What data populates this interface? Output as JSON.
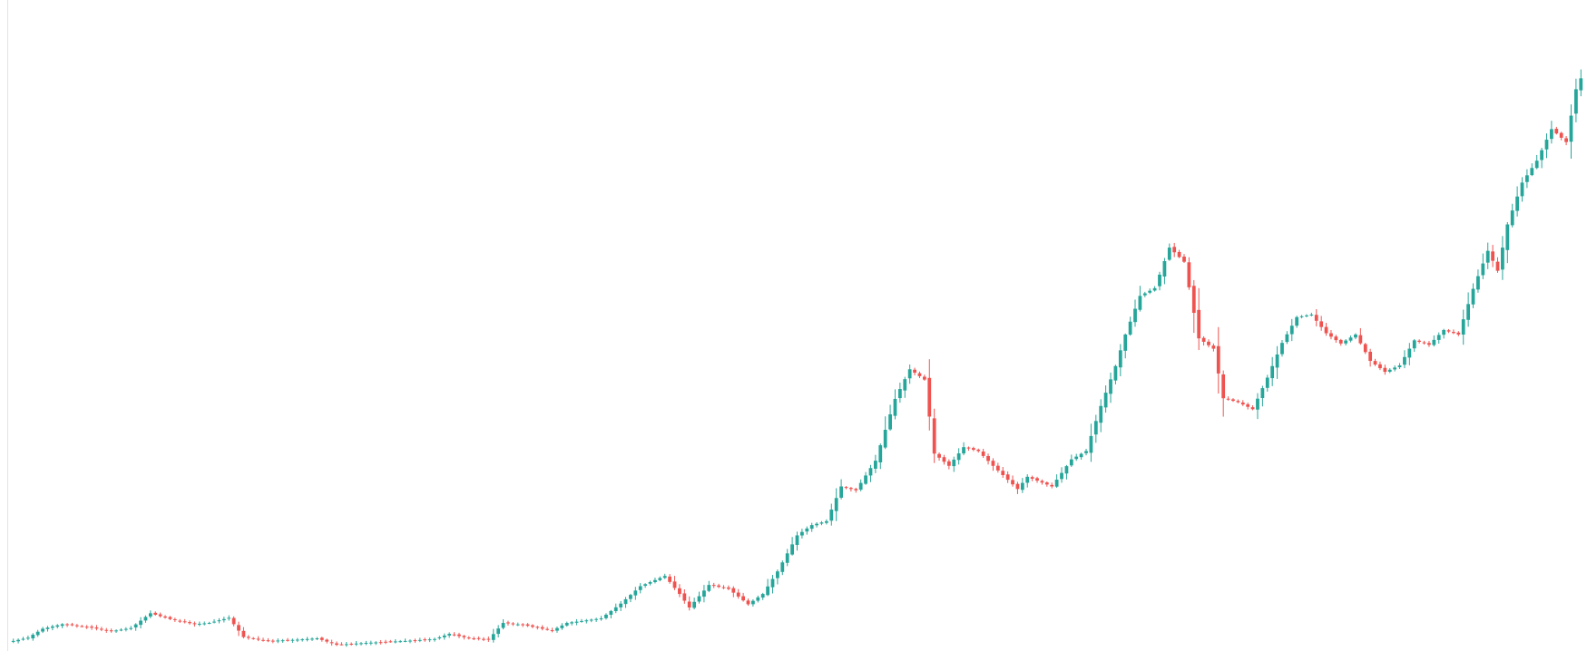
{
  "chart_data": {
    "type": "candlestick",
    "title": "",
    "xlabel": "",
    "ylabel": "",
    "grid": false,
    "legend": "none",
    "ylim": [
      0,
      100
    ],
    "colors": {
      "up": "#26a69a",
      "down": "#ef5350",
      "axis": "#e0e3eb",
      "background": "#ffffff"
    },
    "series": [
      {
        "name": "",
        "anchors": [
          [
            0,
            1.0
          ],
          [
            3,
            1.5
          ],
          [
            6,
            2.9
          ],
          [
            10,
            3.6
          ],
          [
            15,
            3.2
          ],
          [
            20,
            2.5
          ],
          [
            24,
            3.0
          ],
          [
            28,
            5.3
          ],
          [
            32,
            4.4
          ],
          [
            37,
            3.6
          ],
          [
            40,
            3.8
          ],
          [
            44,
            4.6
          ],
          [
            47,
            1.6
          ],
          [
            52,
            1.0
          ],
          [
            58,
            1.2
          ],
          [
            62,
            1.4
          ],
          [
            66,
            0.4
          ],
          [
            72,
            0.7
          ],
          [
            80,
            1.0
          ],
          [
            86,
            1.3
          ],
          [
            89,
            2.1
          ],
          [
            93,
            1.4
          ],
          [
            97,
            1.2
          ],
          [
            100,
            3.8
          ],
          [
            104,
            3.5
          ],
          [
            110,
            2.6
          ],
          [
            113,
            3.8
          ],
          [
            120,
            4.5
          ],
          [
            124,
            6.8
          ],
          [
            128,
            9.5
          ],
          [
            133,
            11.1
          ],
          [
            136,
            8.3
          ],
          [
            138,
            6.2
          ],
          [
            142,
            9.7
          ],
          [
            146,
            9.1
          ],
          [
            150,
            6.7
          ],
          [
            153,
            8.3
          ],
          [
            156,
            11.8
          ],
          [
            160,
            17.4
          ],
          [
            163,
            19.0
          ],
          [
            166,
            19.6
          ],
          [
            169,
            25.0
          ],
          [
            172,
            24.4
          ],
          [
            176,
            29.0
          ],
          [
            180,
            38.6
          ],
          [
            183,
            43.2
          ],
          [
            186,
            41.6
          ],
          [
            188,
            30.1
          ],
          [
            191,
            28.2
          ],
          [
            194,
            31.1
          ],
          [
            197,
            30.5
          ],
          [
            200,
            28.2
          ],
          [
            205,
            24.6
          ],
          [
            207,
            26.5
          ],
          [
            212,
            25.0
          ],
          [
            216,
            29.2
          ],
          [
            219,
            30.5
          ],
          [
            222,
            37.5
          ],
          [
            225,
            43.7
          ],
          [
            227,
            48.6
          ],
          [
            230,
            54.6
          ],
          [
            233,
            55.8
          ],
          [
            236,
            62.1
          ],
          [
            239,
            59.9
          ],
          [
            242,
            48.0
          ],
          [
            245,
            46.4
          ],
          [
            247,
            38.7
          ],
          [
            250,
            38.1
          ],
          [
            253,
            37.0
          ],
          [
            256,
            41.9
          ],
          [
            259,
            47.3
          ],
          [
            262,
            51.3
          ],
          [
            265,
            51.7
          ],
          [
            268,
            48.8
          ],
          [
            271,
            47.2
          ],
          [
            274,
            48.6
          ],
          [
            277,
            44.5
          ],
          [
            280,
            42.8
          ],
          [
            283,
            43.8
          ],
          [
            286,
            47.7
          ],
          [
            289,
            47.0
          ],
          [
            292,
            49.3
          ],
          [
            295,
            48.6
          ],
          [
            298,
            55.7
          ],
          [
            301,
            61.6
          ],
          [
            303,
            58.5
          ],
          [
            305,
            65.7
          ],
          [
            308,
            72.2
          ],
          [
            311,
            75.6
          ],
          [
            314,
            80.5
          ],
          [
            317,
            78.5
          ],
          [
            319,
            86.7
          ],
          [
            320,
            88.4
          ]
        ]
      }
    ]
  }
}
